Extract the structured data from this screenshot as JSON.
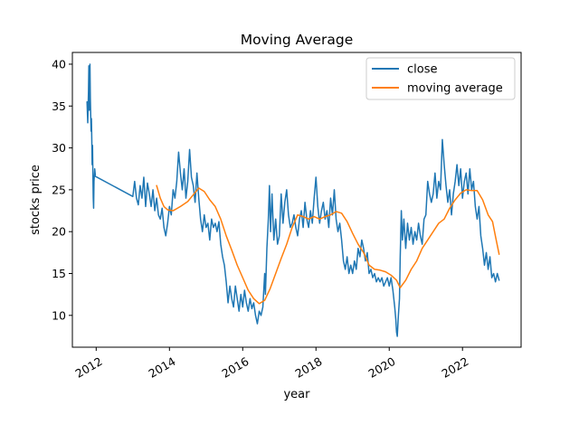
{
  "chart_data": {
    "type": "line",
    "title": "Moving Average",
    "xlabel": "year",
    "ylabel": "stocks price",
    "xlim": [
      2011.35,
      2023.6
    ],
    "ylim": [
      6.2,
      41.4
    ],
    "xticks": [
      2012,
      2014,
      2016,
      2018,
      2020,
      2022
    ],
    "xtick_labels": [
      "2012",
      "2014",
      "2016",
      "2018",
      "2020",
      "2022"
    ],
    "yticks": [
      10,
      15,
      20,
      25,
      30,
      35,
      40
    ],
    "ytick_labels": [
      "10",
      "15",
      "20",
      "25",
      "30",
      "35",
      "40"
    ],
    "grid": false,
    "legend": {
      "placement": "upper right",
      "entries": [
        "close",
        "moving average"
      ]
    },
    "series": [
      {
        "name": "close",
        "color": "#1f77b4",
        "points": [
          [
            2011.75,
            35.5
          ],
          [
            2011.77,
            33.0
          ],
          [
            2011.79,
            36.8
          ],
          [
            2011.8,
            39.8
          ],
          [
            2011.81,
            34.5
          ],
          [
            2011.82,
            38.5
          ],
          [
            2011.83,
            40.0
          ],
          [
            2011.84,
            36.0
          ],
          [
            2011.86,
            32.0
          ],
          [
            2011.87,
            33.5
          ],
          [
            2011.88,
            31.0
          ],
          [
            2011.89,
            28.0
          ],
          [
            2011.9,
            30.3
          ],
          [
            2011.91,
            27.0
          ],
          [
            2011.92,
            24.0
          ],
          [
            2011.93,
            22.8
          ],
          [
            2011.94,
            26.0
          ],
          [
            2011.96,
            27.5
          ],
          [
            2011.98,
            26.6
          ],
          [
            2013.0,
            24.2
          ],
          [
            2013.05,
            26.0
          ],
          [
            2013.1,
            24.0
          ],
          [
            2013.15,
            23.2
          ],
          [
            2013.2,
            25.5
          ],
          [
            2013.25,
            24.0
          ],
          [
            2013.3,
            26.5
          ],
          [
            2013.35,
            23.0
          ],
          [
            2013.4,
            25.8
          ],
          [
            2013.45,
            24.5
          ],
          [
            2013.5,
            23.0
          ],
          [
            2013.55,
            25.0
          ],
          [
            2013.6,
            22.5
          ],
          [
            2013.65,
            24.0
          ],
          [
            2013.7,
            22.0
          ],
          [
            2013.75,
            21.5
          ],
          [
            2013.8,
            22.8
          ],
          [
            2013.85,
            20.5
          ],
          [
            2013.9,
            19.5
          ],
          [
            2013.95,
            21.0
          ],
          [
            2014.0,
            23.0
          ],
          [
            2014.05,
            22.0
          ],
          [
            2014.1,
            25.0
          ],
          [
            2014.15,
            24.0
          ],
          [
            2014.2,
            26.0
          ],
          [
            2014.25,
            29.5
          ],
          [
            2014.3,
            27.0
          ],
          [
            2014.35,
            25.0
          ],
          [
            2014.4,
            27.5
          ],
          [
            2014.45,
            24.0
          ],
          [
            2014.5,
            26.0
          ],
          [
            2014.55,
            29.8
          ],
          [
            2014.6,
            26.5
          ],
          [
            2014.65,
            25.5
          ],
          [
            2014.7,
            23.5
          ],
          [
            2014.75,
            27.0
          ],
          [
            2014.8,
            24.0
          ],
          [
            2014.85,
            21.5
          ],
          [
            2014.9,
            20.0
          ],
          [
            2014.95,
            22.0
          ],
          [
            2015.0,
            20.5
          ],
          [
            2015.05,
            21.0
          ],
          [
            2015.1,
            19.0
          ],
          [
            2015.15,
            21.5
          ],
          [
            2015.2,
            20.5
          ],
          [
            2015.25,
            21.0
          ],
          [
            2015.3,
            20.0
          ],
          [
            2015.35,
            21.2
          ],
          [
            2015.4,
            18.5
          ],
          [
            2015.45,
            17.0
          ],
          [
            2015.5,
            16.0
          ],
          [
            2015.55,
            14.0
          ],
          [
            2015.6,
            11.5
          ],
          [
            2015.65,
            13.5
          ],
          [
            2015.7,
            12.0
          ],
          [
            2015.75,
            11.0
          ],
          [
            2015.8,
            13.5
          ],
          [
            2015.85,
            12.0
          ],
          [
            2015.9,
            10.5
          ],
          [
            2015.95,
            12.5
          ],
          [
            2016.0,
            11.0
          ],
          [
            2016.05,
            13.0
          ],
          [
            2016.1,
            11.5
          ],
          [
            2016.15,
            10.5
          ],
          [
            2016.2,
            12.0
          ],
          [
            2016.25,
            10.8
          ],
          [
            2016.3,
            11.5
          ],
          [
            2016.35,
            10.0
          ],
          [
            2016.4,
            9.0
          ],
          [
            2016.45,
            10.5
          ],
          [
            2016.5,
            10.0
          ],
          [
            2016.55,
            11.0
          ],
          [
            2016.6,
            15.0
          ],
          [
            2016.62,
            12.5
          ],
          [
            2016.66,
            18.0
          ],
          [
            2016.7,
            21.5
          ],
          [
            2016.73,
            25.5
          ],
          [
            2016.76,
            20.0
          ],
          [
            2016.8,
            24.5
          ],
          [
            2016.85,
            19.0
          ],
          [
            2016.9,
            21.5
          ],
          [
            2016.95,
            18.5
          ],
          [
            2017.0,
            19.5
          ],
          [
            2017.05,
            24.5
          ],
          [
            2017.1,
            21.0
          ],
          [
            2017.15,
            23.5
          ],
          [
            2017.2,
            25.0
          ],
          [
            2017.25,
            22.0
          ],
          [
            2017.3,
            20.5
          ],
          [
            2017.35,
            21.0
          ],
          [
            2017.4,
            22.0
          ],
          [
            2017.45,
            20.5
          ],
          [
            2017.5,
            19.5
          ],
          [
            2017.55,
            21.5
          ],
          [
            2017.6,
            22.5
          ],
          [
            2017.65,
            20.5
          ],
          [
            2017.7,
            23.5
          ],
          [
            2017.75,
            21.5
          ],
          [
            2017.8,
            20.5
          ],
          [
            2017.85,
            22.5
          ],
          [
            2017.9,
            21.0
          ],
          [
            2017.95,
            24.0
          ],
          [
            2018.0,
            26.5
          ],
          [
            2018.05,
            23.0
          ],
          [
            2018.1,
            21.0
          ],
          [
            2018.15,
            22.5
          ],
          [
            2018.2,
            23.5
          ],
          [
            2018.25,
            21.5
          ],
          [
            2018.3,
            22.5
          ],
          [
            2018.35,
            20.5
          ],
          [
            2018.4,
            24.0
          ],
          [
            2018.45,
            22.0
          ],
          [
            2018.5,
            25.0
          ],
          [
            2018.55,
            21.5
          ],
          [
            2018.6,
            20.0
          ],
          [
            2018.65,
            21.0
          ],
          [
            2018.7,
            19.0
          ],
          [
            2018.75,
            16.5
          ],
          [
            2018.8,
            15.5
          ],
          [
            2018.85,
            17.0
          ],
          [
            2018.9,
            15.0
          ],
          [
            2018.95,
            16.0
          ],
          [
            2019.0,
            15.0
          ],
          [
            2019.05,
            16.5
          ],
          [
            2019.1,
            15.5
          ],
          [
            2019.15,
            18.0
          ],
          [
            2019.2,
            17.0
          ],
          [
            2019.25,
            19.0
          ],
          [
            2019.3,
            18.0
          ],
          [
            2019.35,
            16.5
          ],
          [
            2019.4,
            17.5
          ],
          [
            2019.45,
            15.0
          ],
          [
            2019.5,
            15.5
          ],
          [
            2019.55,
            14.5
          ],
          [
            2019.6,
            15.0
          ],
          [
            2019.65,
            14.0
          ],
          [
            2019.7,
            14.5
          ],
          [
            2019.75,
            14.0
          ],
          [
            2019.8,
            14.5
          ],
          [
            2019.85,
            13.5
          ],
          [
            2019.9,
            14.0
          ],
          [
            2019.95,
            14.5
          ],
          [
            2020.0,
            13.5
          ],
          [
            2020.05,
            14.5
          ],
          [
            2020.1,
            13.0
          ],
          [
            2020.15,
            11.0
          ],
          [
            2020.18,
            9.5
          ],
          [
            2020.2,
            8.0
          ],
          [
            2020.22,
            7.5
          ],
          [
            2020.25,
            10.0
          ],
          [
            2020.28,
            12.0
          ],
          [
            2020.3,
            17.0
          ],
          [
            2020.33,
            22.5
          ],
          [
            2020.36,
            19.0
          ],
          [
            2020.4,
            21.5
          ],
          [
            2020.45,
            18.0
          ],
          [
            2020.5,
            21.0
          ],
          [
            2020.55,
            19.0
          ],
          [
            2020.6,
            20.5
          ],
          [
            2020.65,
            18.5
          ],
          [
            2020.7,
            20.0
          ],
          [
            2020.75,
            19.0
          ],
          [
            2020.8,
            21.0
          ],
          [
            2020.85,
            19.5
          ],
          [
            2020.9,
            18.5
          ],
          [
            2020.95,
            21.5
          ],
          [
            2021.0,
            22.0
          ],
          [
            2021.05,
            26.0
          ],
          [
            2021.1,
            24.5
          ],
          [
            2021.15,
            23.5
          ],
          [
            2021.2,
            24.5
          ],
          [
            2021.25,
            27.0
          ],
          [
            2021.3,
            24.0
          ],
          [
            2021.35,
            26.0
          ],
          [
            2021.4,
            25.0
          ],
          [
            2021.45,
            31.0
          ],
          [
            2021.5,
            28.0
          ],
          [
            2021.55,
            25.5
          ],
          [
            2021.6,
            23.5
          ],
          [
            2021.65,
            25.0
          ],
          [
            2021.7,
            22.0
          ],
          [
            2021.75,
            24.5
          ],
          [
            2021.8,
            26.0
          ],
          [
            2021.85,
            28.0
          ],
          [
            2021.9,
            25.5
          ],
          [
            2021.95,
            27.5
          ],
          [
            2022.0,
            24.0
          ],
          [
            2022.05,
            26.0
          ],
          [
            2022.1,
            27.0
          ],
          [
            2022.15,
            24.5
          ],
          [
            2022.2,
            27.5
          ],
          [
            2022.25,
            25.0
          ],
          [
            2022.3,
            26.0
          ],
          [
            2022.35,
            23.0
          ],
          [
            2022.4,
            21.5
          ],
          [
            2022.45,
            23.0
          ],
          [
            2022.5,
            19.5
          ],
          [
            2022.55,
            18.0
          ],
          [
            2022.6,
            16.0
          ],
          [
            2022.65,
            17.5
          ],
          [
            2022.7,
            15.5
          ],
          [
            2022.75,
            17.0
          ],
          [
            2022.8,
            14.5
          ],
          [
            2022.85,
            15.0
          ],
          [
            2022.9,
            14.0
          ],
          [
            2022.95,
            15.0
          ],
          [
            2023.0,
            14.2
          ]
        ]
      },
      {
        "name": "moving average",
        "color": "#ff7f0e",
        "points": [
          [
            2013.65,
            25.5
          ],
          [
            2013.75,
            24.0
          ],
          [
            2013.85,
            23.0
          ],
          [
            2013.95,
            22.6
          ],
          [
            2014.1,
            22.5
          ],
          [
            2014.3,
            23.0
          ],
          [
            2014.5,
            23.6
          ],
          [
            2014.65,
            24.4
          ],
          [
            2014.8,
            25.2
          ],
          [
            2014.95,
            24.8
          ],
          [
            2015.1,
            23.8
          ],
          [
            2015.25,
            23.0
          ],
          [
            2015.4,
            21.5
          ],
          [
            2015.55,
            19.5
          ],
          [
            2015.7,
            17.8
          ],
          [
            2015.85,
            16.0
          ],
          [
            2016.0,
            14.5
          ],
          [
            2016.15,
            13.0
          ],
          [
            2016.3,
            12.0
          ],
          [
            2016.45,
            11.4
          ],
          [
            2016.6,
            11.8
          ],
          [
            2016.75,
            13.2
          ],
          [
            2016.9,
            15.0
          ],
          [
            2017.05,
            16.8
          ],
          [
            2017.2,
            18.5
          ],
          [
            2017.35,
            20.5
          ],
          [
            2017.5,
            22.0
          ],
          [
            2017.65,
            21.8
          ],
          [
            2017.8,
            21.5
          ],
          [
            2017.95,
            21.8
          ],
          [
            2018.1,
            21.5
          ],
          [
            2018.25,
            21.8
          ],
          [
            2018.4,
            22.0
          ],
          [
            2018.55,
            22.4
          ],
          [
            2018.7,
            22.2
          ],
          [
            2018.85,
            21.2
          ],
          [
            2019.0,
            19.8
          ],
          [
            2019.15,
            18.5
          ],
          [
            2019.3,
            17.5
          ],
          [
            2019.45,
            16.0
          ],
          [
            2019.6,
            15.5
          ],
          [
            2019.75,
            15.4
          ],
          [
            2019.9,
            15.2
          ],
          [
            2020.05,
            14.8
          ],
          [
            2020.2,
            14.2
          ],
          [
            2020.3,
            13.3
          ],
          [
            2020.45,
            14.2
          ],
          [
            2020.6,
            15.5
          ],
          [
            2020.75,
            16.5
          ],
          [
            2020.9,
            18.0
          ],
          [
            2021.05,
            19.0
          ],
          [
            2021.2,
            20.0
          ],
          [
            2021.35,
            21.0
          ],
          [
            2021.5,
            21.5
          ],
          [
            2021.65,
            22.8
          ],
          [
            2021.8,
            23.8
          ],
          [
            2021.95,
            24.6
          ],
          [
            2022.1,
            25.0
          ],
          [
            2022.25,
            24.9
          ],
          [
            2022.4,
            24.9
          ],
          [
            2022.55,
            23.8
          ],
          [
            2022.7,
            22.0
          ],
          [
            2022.82,
            21.2
          ],
          [
            2022.92,
            19.0
          ],
          [
            2023.0,
            17.3
          ]
        ]
      }
    ]
  }
}
